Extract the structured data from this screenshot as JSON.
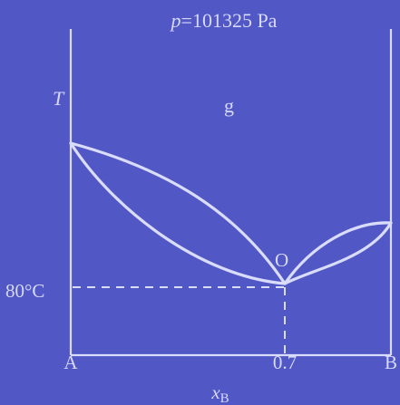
{
  "diagram": {
    "pressure_label": "p=101325 Pa",
    "pressure_symbol": "p",
    "pressure_value": "=101325 Pa",
    "t_axis_label": "T",
    "gas_region_label": "g",
    "point_label": "O",
    "temp_label": "80°C",
    "x_labels": {
      "a": "A",
      "mid": "0.7",
      "b": "B"
    },
    "x_axis_label": "x",
    "x_axis_subscript": "B"
  },
  "colors": {
    "background": "#5157c4",
    "line": "#d9dcfb",
    "text": "#d7dafb"
  }
}
